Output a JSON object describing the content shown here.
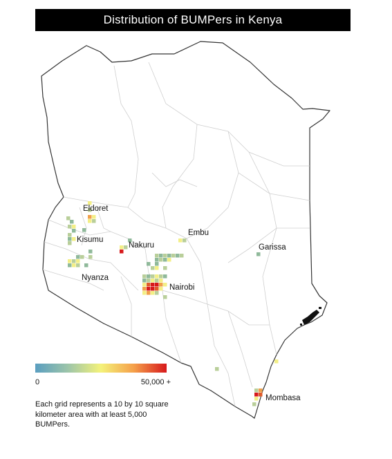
{
  "title": "Distribution of BUMPers in Kenya",
  "legend": {
    "min_label": "0",
    "max_label": "50,000 +",
    "colors": [
      "#5a9ec0",
      "#9dc5a9",
      "#f4f27a",
      "#f5a04a",
      "#d7191c"
    ]
  },
  "note": "Each grid represents  a 10 by 10 square kilometer area with at least 5,000 BUMPers.",
  "cities": [
    {
      "name": "Eldoret"
    },
    {
      "name": "Kisumu"
    },
    {
      "name": "Nakuru"
    },
    {
      "name": "Embu"
    },
    {
      "name": "Garissa"
    },
    {
      "name": "Nyanza"
    },
    {
      "name": "Nairobi"
    },
    {
      "name": "Mombasa"
    }
  ]
}
